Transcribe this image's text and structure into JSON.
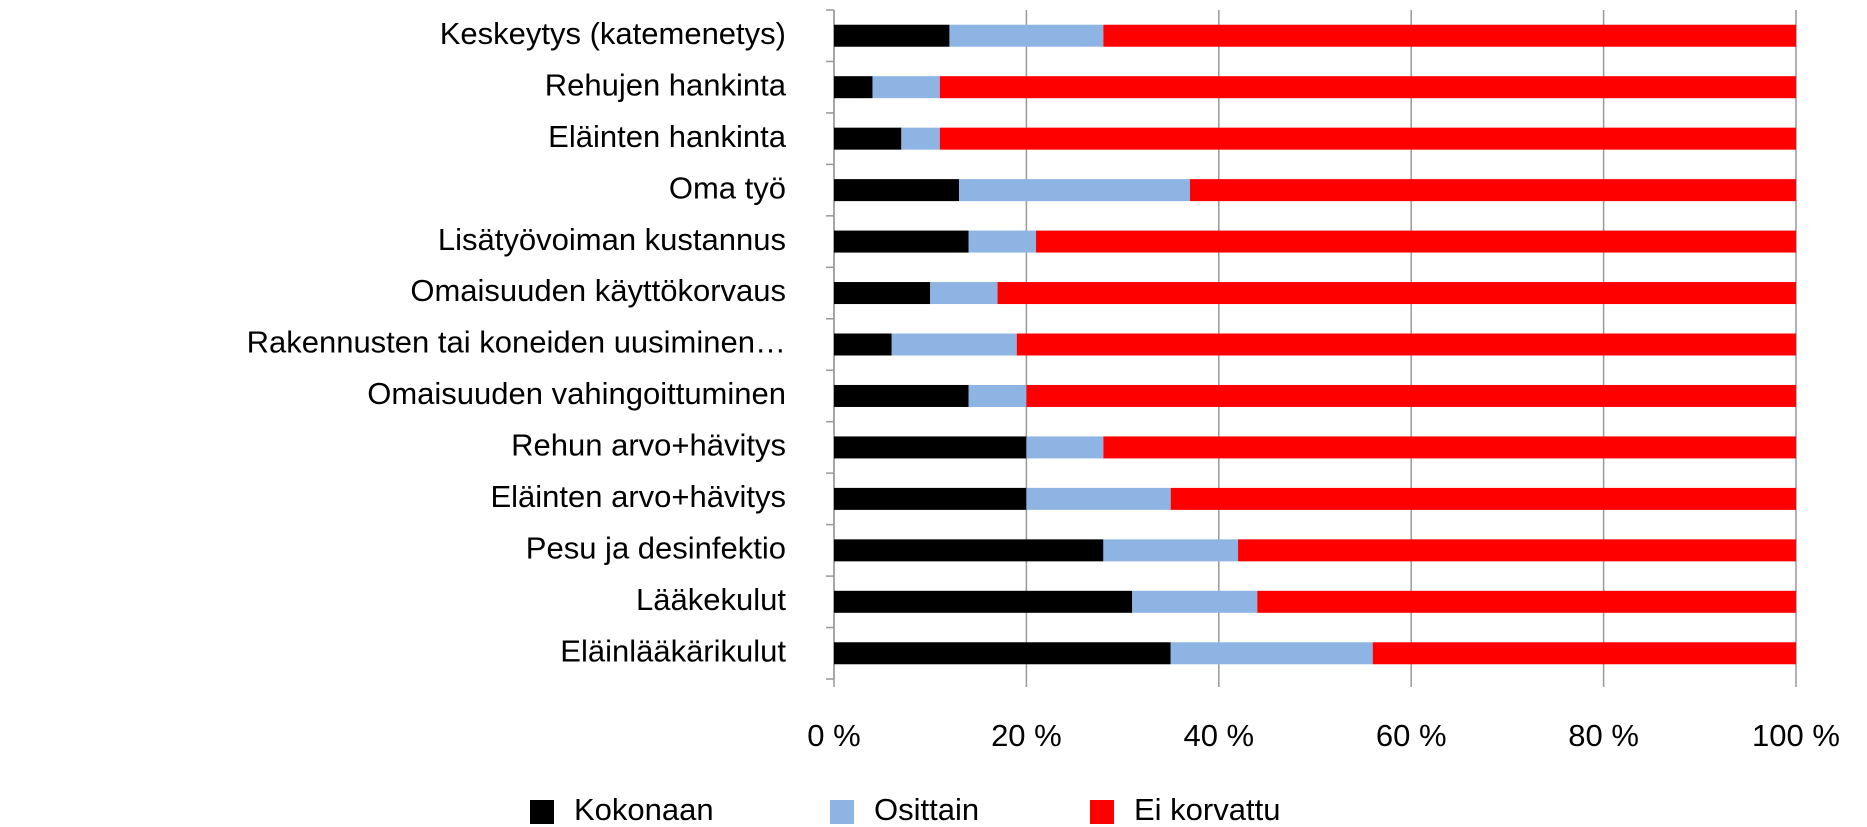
{
  "chart_data": {
    "type": "stacked_barh",
    "categories": [
      "Keskeytys (katemenetys)",
      "Rehujen hankinta",
      "Eläinten hankinta",
      "Oma työ",
      "Lisätyövoiman kustannus",
      "Omaisuuden käyttökorvaus",
      "Rakennusten tai koneiden uusiminen…",
      "Omaisuuden vahingoittuminen",
      "Rehun arvo+hävitys",
      "Eläinten arvo+hävitys",
      "Pesu ja desinfektio",
      "Lääkekulut",
      "Eläinlääkärikulut"
    ],
    "series": [
      {
        "name": "Kokonaan",
        "color": "#000000",
        "values": [
          12,
          4,
          7,
          13,
          14,
          10,
          6,
          14,
          20,
          20,
          28,
          31,
          35
        ]
      },
      {
        "name": "Osittain",
        "color": "#8db4e2",
        "values": [
          16,
          7,
          4,
          24,
          7,
          7,
          13,
          6,
          8,
          15,
          14,
          13,
          21
        ]
      },
      {
        "name": "Ei korvattu",
        "color": "#ff0000",
        "values": [
          72,
          89,
          89,
          63,
          79,
          83,
          81,
          80,
          72,
          65,
          58,
          56,
          44
        ]
      }
    ],
    "xlim": [
      0,
      100
    ],
    "xticks": [
      {
        "value": 0,
        "label": "0 %"
      },
      {
        "value": 20,
        "label": "20 %"
      },
      {
        "value": 40,
        "label": "40 %"
      },
      {
        "value": 60,
        "label": "60 %"
      },
      {
        "value": 80,
        "label": "80 %"
      },
      {
        "value": 100,
        "label": "100 %"
      }
    ],
    "grid": true,
    "legend": "bottom"
  }
}
